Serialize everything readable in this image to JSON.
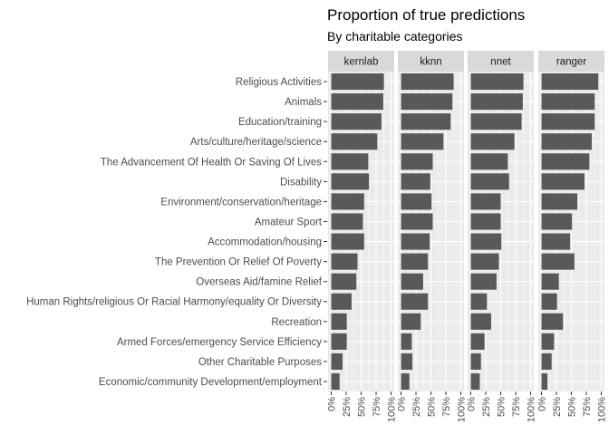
{
  "chart_data": {
    "type": "bar",
    "orientation": "horizontal",
    "title": "Proportion of true predictions",
    "subtitle": "By charitable categories",
    "xlabel": "",
    "ylabel": "",
    "xlim": [
      0,
      1
    ],
    "x_ticks": [
      "0%",
      "25%",
      "50%",
      "75%",
      "100%"
    ],
    "grid": true,
    "bar_color": "#595959",
    "panel_bg": "#ebebeb",
    "strip_bg": "#d9d9d9",
    "categories": [
      "Religious Activities",
      "Animals",
      "Education/training",
      "Arts/culture/heritage/science",
      "The Advancement Of Health Or Saving Of Lives",
      "Disability",
      "Environment/conservation/heritage",
      "Amateur Sport",
      "Accommodation/housing",
      "The Prevention Or Relief Of Poverty",
      "Overseas Aid/famine Relief",
      "Human Rights/religious Or Racial Harmony/equality Or Diversity",
      "Recreation",
      "Armed Forces/emergency Service Efficiency",
      "Other Charitable Purposes",
      "Economic/community Development/employment"
    ],
    "panels": [
      {
        "name": "kernlab",
        "values": [
          0.88,
          0.87,
          0.84,
          0.77,
          0.62,
          0.63,
          0.55,
          0.53,
          0.55,
          0.44,
          0.42,
          0.34,
          0.26,
          0.26,
          0.19,
          0.14
        ]
      },
      {
        "name": "kknn",
        "values": [
          0.88,
          0.86,
          0.83,
          0.71,
          0.53,
          0.49,
          0.51,
          0.53,
          0.48,
          0.45,
          0.37,
          0.45,
          0.33,
          0.18,
          0.19,
          0.14
        ]
      },
      {
        "name": "nnet",
        "values": [
          0.88,
          0.87,
          0.85,
          0.73,
          0.62,
          0.64,
          0.5,
          0.5,
          0.51,
          0.47,
          0.43,
          0.27,
          0.34,
          0.23,
          0.17,
          0.15
        ]
      },
      {
        "name": "ranger",
        "values": [
          0.95,
          0.89,
          0.89,
          0.84,
          0.8,
          0.72,
          0.6,
          0.51,
          0.48,
          0.55,
          0.29,
          0.26,
          0.36,
          0.21,
          0.17,
          0.1
        ]
      }
    ]
  }
}
